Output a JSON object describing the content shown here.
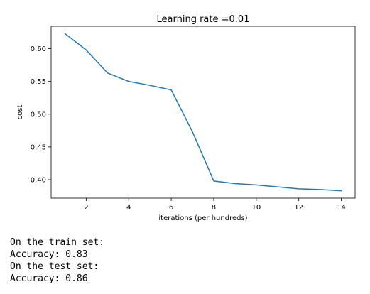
{
  "chart_data": {
    "type": "line",
    "title": "Learning rate =0.01",
    "xlabel": "iterations (per hundreds)",
    "ylabel": "cost",
    "x": [
      1,
      2,
      3,
      4,
      5,
      6,
      7,
      8,
      9,
      10,
      11,
      12,
      13,
      14
    ],
    "series": [
      {
        "color": "#1f77b4",
        "values": [
          0.623,
          0.598,
          0.563,
          0.55,
          0.544,
          0.537,
          0.473,
          0.398,
          0.394,
          0.392,
          0.389,
          0.386,
          0.385,
          0.383
        ]
      }
    ],
    "xlim": [
      0.35,
      14.65
    ],
    "ylim": [
      0.3718,
      0.6342
    ],
    "xticks": [
      2,
      4,
      6,
      8,
      10,
      12,
      14
    ],
    "yticks": [
      0.4,
      0.45,
      0.5,
      0.55,
      0.6
    ],
    "xtick_labels": [
      "2",
      "4",
      "6",
      "8",
      "10",
      "12",
      "14"
    ],
    "ytick_labels": [
      "0.40",
      "0.45",
      "0.50",
      "0.55",
      "0.60"
    ],
    "grid": false,
    "legend": "none"
  },
  "output": {
    "lines": [
      "On the train set:",
      "Accuracy: 0.83",
      "On the test set:",
      "Accuracy: 0.86"
    ]
  }
}
